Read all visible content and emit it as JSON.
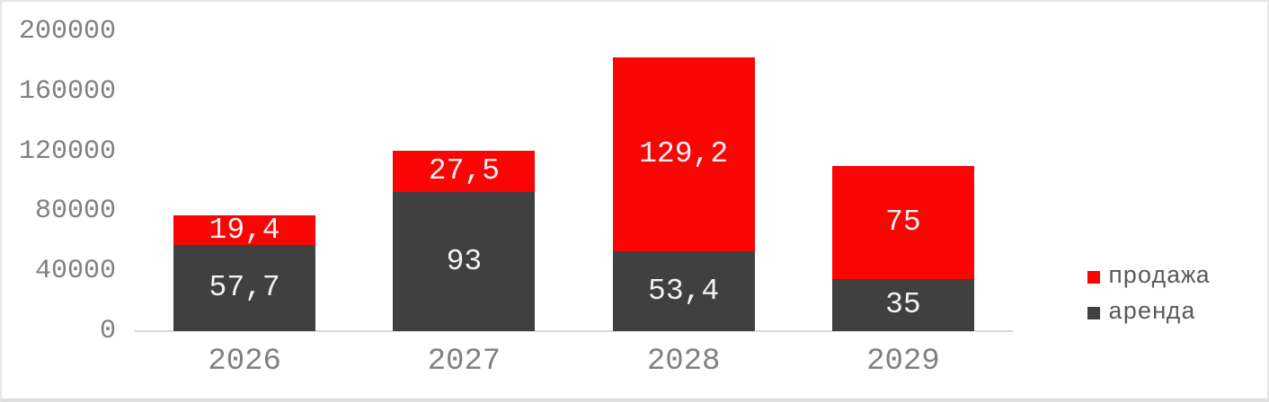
{
  "colors": {
    "background": "#ffffff",
    "frame_border": "#e7e7e7",
    "axis_text": "#808080",
    "axis_line": "#d9d9d9",
    "bar_label_text": "#f2f2f2",
    "legend_text": "#595959",
    "series_sale": "#fb0404",
    "series_rent": "#404040"
  },
  "chart_data": {
    "type": "bar",
    "stacked": true,
    "title": "",
    "xlabel": "",
    "ylabel": "",
    "categories": [
      "2026",
      "2027",
      "2028",
      "2029"
    ],
    "series": [
      {
        "key": "prodazha",
        "name": "продажа",
        "color": "#fb0404",
        "values": [
          19400,
          27500,
          129200,
          75000
        ],
        "labels": [
          "19,4",
          "27,5",
          "129,2",
          "75"
        ]
      },
      {
        "key": "arenda",
        "name": "аренда",
        "color": "#404040",
        "values": [
          57700,
          93000,
          53400,
          35000
        ],
        "labels": [
          "57,7",
          "93",
          "53,4",
          "35"
        ]
      }
    ],
    "ylim": [
      0,
      200000
    ],
    "yticks": [
      0,
      40000,
      80000,
      120000,
      160000,
      200000
    ],
    "ytick_labels": [
      "0",
      "40000",
      "80000",
      "120000",
      "160000",
      "200000"
    ],
    "grid": false,
    "legend_position": "right",
    "legend_entries": [
      "продажа",
      "аренда"
    ]
  }
}
